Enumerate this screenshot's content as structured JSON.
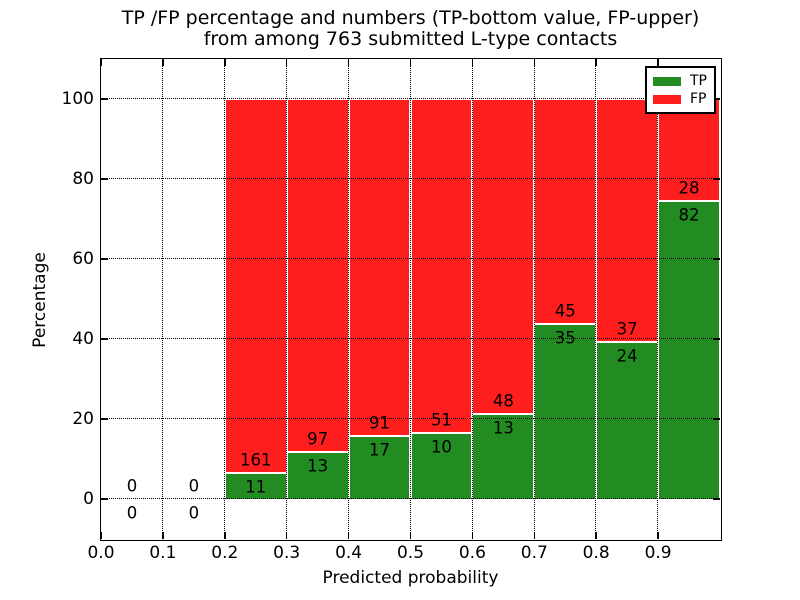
{
  "figure": {
    "title_line1": "TP /FP percentage and numbers (TP-bottom value, FP-upper)",
    "title_line2": "from among 763 submitted L-type contacts"
  },
  "chart_data": {
    "type": "bar",
    "stacked": true,
    "title": "TP /FP percentage and numbers (TP-bottom value, FP-upper)\nfrom among 763 submitted L-type contacts",
    "xlabel": "Predicted probability",
    "ylabel": "Percentage",
    "xlim": [
      0.0,
      1.0
    ],
    "ylim": [
      -10,
      110
    ],
    "x_tick_labels": [
      "0.0",
      "0.1",
      "0.2",
      "0.3",
      "0.4",
      "0.5",
      "0.6",
      "0.7",
      "0.8",
      "0.9"
    ],
    "y_tick_labels": [
      "0",
      "20",
      "40",
      "60",
      "80",
      "100"
    ],
    "y_tick_values": [
      0,
      20,
      40,
      60,
      80,
      100
    ],
    "bin_starts": [
      0.0,
      0.1,
      0.2,
      0.3,
      0.4,
      0.5,
      0.6,
      0.7,
      0.8,
      0.9
    ],
    "bin_width": 0.1,
    "series": [
      {
        "name": "TP",
        "color": "#228B22",
        "counts": [
          0,
          0,
          11,
          13,
          17,
          10,
          13,
          35,
          24,
          82
        ]
      },
      {
        "name": "FP",
        "color": "#FF1E1E",
        "counts": [
          0,
          0,
          161,
          97,
          91,
          51,
          48,
          45,
          37,
          28
        ]
      }
    ],
    "tp_percent_of_bin": [
      null,
      null,
      6.4,
      11.82,
      15.74,
      16.39,
      21.31,
      43.75,
      39.34,
      74.55
    ],
    "total_contacts": 763,
    "grid_style": "dotted",
    "legend_position": "upper right",
    "legend_entries": [
      {
        "label": "TP",
        "color": "#228B22"
      },
      {
        "label": "FP",
        "color": "#FF1E1E"
      }
    ]
  }
}
